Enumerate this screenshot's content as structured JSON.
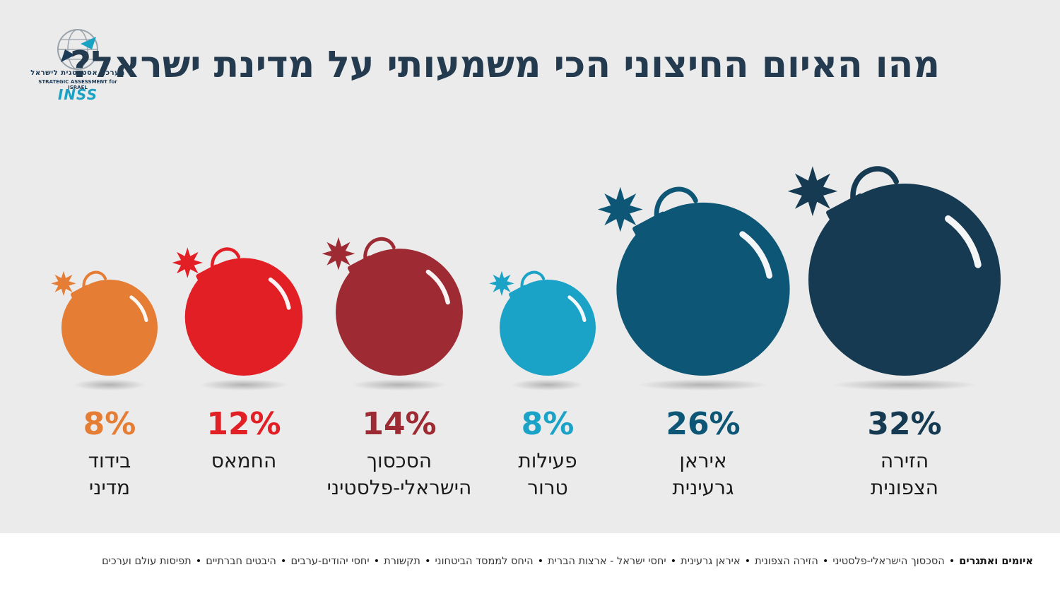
{
  "title": "מהו האיום החיצוני הכי משמעותי על מדינת ישראל?",
  "logo": {
    "hebrew": "הערכה אסטרטגית לישראל",
    "english": "STRATEGIC ASSESSMENT for ISRAEL",
    "brand": "INSS"
  },
  "chart_data": {
    "type": "bar",
    "title": "מהו האיום החיצוני הכי משמעותי על מדינת ישראל?",
    "unit": "%",
    "categories": [
      "הזירה הצפונית",
      "איראן גרעינית",
      "פעילות טרור",
      "הסכסוך הישראלי-פלסטיני",
      "החמאס",
      "בידוד מדיני"
    ],
    "values": [
      32,
      26,
      8,
      14,
      12,
      8
    ],
    "value_labels": [
      "32%",
      "26%",
      "8%",
      "14%",
      "12%",
      "8%"
    ],
    "label_lines": [
      [
        "הזירה",
        "הצפונית"
      ],
      [
        "איראן",
        "גרעינית"
      ],
      [
        "פעילות",
        "טרור"
      ],
      [
        "הסכסוך",
        "הישראלי-פלסטיני"
      ],
      [
        "החמאס"
      ],
      [
        "בידוד",
        "מדיני"
      ]
    ],
    "colors": [
      "#163a51",
      "#0d5675",
      "#1aa3c7",
      "#9e2b33",
      "#e31f26",
      "#e57d35"
    ]
  },
  "footer": {
    "lead": "איומים ואתגרים",
    "items": [
      "הסכסוך הישראלי-פלסטיני",
      "הזירה הצפונית",
      "איראן גרעינית",
      "יחסי ישראל - ארצות הברית",
      "היחס לממסד הביטחוני",
      "תקשורת",
      "יחסי יהודים-ערבים",
      "היבטים חברתיים",
      "תפיסות עולם וערכים"
    ]
  }
}
